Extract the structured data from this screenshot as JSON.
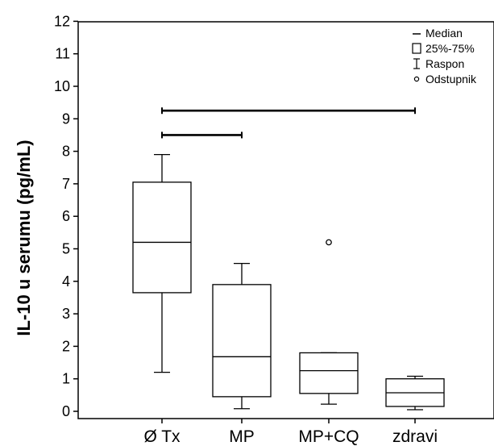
{
  "chart_data": {
    "type": "boxplot",
    "ylabel": "IL-10 u serumu (pg/mL)",
    "ylim": [
      0,
      12
    ],
    "y_ticks": [
      "0",
      "1",
      "2",
      "3",
      "4",
      "5",
      "6",
      "7",
      "8",
      "9",
      "10",
      "11",
      "12"
    ],
    "categories": [
      "Ø Tx",
      "MP",
      "MP+CQ",
      "zdravi"
    ],
    "boxes": [
      {
        "name": "Ø Tx",
        "min": 1.2,
        "q1": 3.65,
        "median": 5.2,
        "q3": 7.05,
        "max": 7.9,
        "outliers": []
      },
      {
        "name": "MP",
        "min": 0.08,
        "q1": 0.45,
        "median": 1.68,
        "q3": 3.9,
        "max": 4.55,
        "outliers": []
      },
      {
        "name": "MP+CQ",
        "min": 0.22,
        "q1": 0.55,
        "median": 1.25,
        "q3": 1.8,
        "max": 1.8,
        "outliers": [
          5.2
        ]
      },
      {
        "name": "zdravi",
        "min": 0.05,
        "q1": 0.15,
        "median": 0.57,
        "q3": 1.0,
        "max": 1.08,
        "outliers": []
      }
    ],
    "significance_brackets": [
      {
        "from": "Ø Tx",
        "to": "MP",
        "y": 8.5
      },
      {
        "from": "Ø Tx",
        "to": "zdravi",
        "y": 9.25
      }
    ],
    "legend": {
      "position": "top-right",
      "items": [
        {
          "symbol": "median",
          "label": "Median"
        },
        {
          "symbol": "box",
          "label": "25%-75%"
        },
        {
          "symbol": "range",
          "label": "Raspon"
        },
        {
          "symbol": "outlier",
          "label": "Odstupnik"
        }
      ]
    }
  }
}
